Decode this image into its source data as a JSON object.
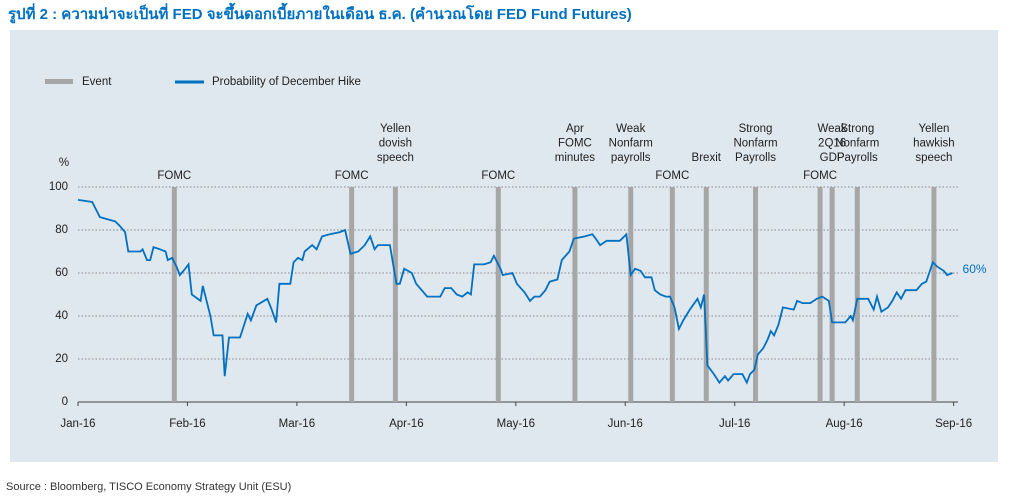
{
  "chart_data": {
    "type": "line",
    "title": "รูปที่ 2 : ความน่าจะเป็นที่ FED จะขึ้นดอกเบี้ยภายในเดือน ธ.ค. (คำนวณโดย FED Fund Futures)",
    "source": "Source : Bloomberg, TISCO Economy Strategy Unit (ESU)",
    "ylabel": "%",
    "xlim": [
      0,
      8.04
    ],
    "xticks": [
      {
        "value": 0,
        "label": "Jan-16"
      },
      {
        "value": 1,
        "label": "Feb-16"
      },
      {
        "value": 2,
        "label": "Mar-16"
      },
      {
        "value": 3,
        "label": "Apr-16"
      },
      {
        "value": 4,
        "label": "May-16"
      },
      {
        "value": 5,
        "label": "Jun-16"
      },
      {
        "value": 6,
        "label": "Jul-16"
      },
      {
        "value": 7,
        "label": "Aug-16"
      },
      {
        "value": 8,
        "label": "Sep-16"
      }
    ],
    "ylim": [
      0,
      100
    ],
    "yticks": [
      0,
      20,
      40,
      60,
      80,
      100
    ],
    "grid": true,
    "event_name": "Event",
    "event_color": "#a6a6a6",
    "events": [
      {
        "x": 0.88,
        "label": [
          "FOMC"
        ]
      },
      {
        "x": 2.5,
        "label": [
          "FOMC"
        ]
      },
      {
        "x": 2.9,
        "label": [
          "Yellen",
          "dovish",
          "speech"
        ]
      },
      {
        "x": 3.84,
        "label": [
          "FOMC"
        ]
      },
      {
        "x": 4.54,
        "label": [
          "Apr",
          "FOMC",
          "minutes"
        ]
      },
      {
        "x": 5.05,
        "label": [
          "Weak",
          "Nonfarm",
          "payrolls"
        ]
      },
      {
        "x": 5.43,
        "label": [
          "FOMC"
        ]
      },
      {
        "x": 5.74,
        "label": [
          "Brexit"
        ]
      },
      {
        "x": 6.19,
        "label": [
          "Strong",
          "Nonfarm",
          "Payrolls"
        ]
      },
      {
        "x": 6.78,
        "label": [
          "FOMC"
        ]
      },
      {
        "x": 6.89,
        "label": [
          "Weak",
          "2Q16",
          "GDP"
        ]
      },
      {
        "x": 7.12,
        "label": [
          "Strong",
          "Nonfarm",
          "Payrolls"
        ]
      },
      {
        "x": 7.82,
        "label": [
          "Yellen",
          "hawkish",
          "speech"
        ]
      }
    ],
    "x": [
      0,
      0.13,
      0.2,
      0.34,
      0.38,
      0.43,
      0.46,
      0.57,
      0.59,
      0.63,
      0.66,
      0.69,
      0.75,
      0.8,
      0.82,
      0.86,
      0.9,
      0.93,
      0.98,
      1.01,
      1.04,
      1.12,
      1.14,
      1.21,
      1.24,
      1.32,
      1.34,
      1.38,
      1.48,
      1.55,
      1.58,
      1.63,
      1.73,
      1.77,
      1.81,
      1.84,
      1.94,
      1.97,
      2.01,
      2.05,
      2.07,
      2.14,
      2.18,
      2.23,
      2.3,
      2.39,
      2.44,
      2.49,
      2.56,
      2.62,
      2.67,
      2.71,
      2.74,
      2.85,
      2.91,
      2.94,
      2.98,
      3.05,
      3.09,
      3.14,
      3.19,
      3.31,
      3.35,
      3.41,
      3.46,
      3.51,
      3.56,
      3.59,
      3.62,
      3.71,
      3.77,
      3.8,
      3.86,
      3.88,
      3.97,
      4.01,
      4.08,
      4.13,
      4.17,
      4.22,
      4.27,
      4.31,
      4.38,
      4.42,
      4.49,
      4.53,
      4.63,
      4.7,
      4.73,
      4.77,
      4.83,
      4.95,
      5.01,
      5.05,
      5.09,
      5.14,
      5.18,
      5.24,
      5.27,
      5.32,
      5.37,
      5.41,
      5.45,
      5.49,
      5.53,
      5.59,
      5.66,
      5.69,
      5.72,
      5.75,
      5.81,
      5.86,
      5.91,
      5.94,
      5.99,
      6.07,
      6.11,
      6.14,
      6.18,
      6.21,
      6.26,
      6.3,
      6.33,
      6.36,
      6.4,
      6.44,
      6.54,
      6.57,
      6.62,
      6.69,
      6.75,
      6.8,
      6.86,
      6.89,
      7.01,
      7.06,
      7.08,
      7.12,
      7.22,
      7.27,
      7.3,
      7.34,
      7.4,
      7.44,
      7.48,
      7.52,
      7.56,
      7.66,
      7.71,
      7.75,
      7.81,
      7.85,
      7.91,
      7.94,
      7.99
    ],
    "series": [
      {
        "name": "Probability of December Hike",
        "color": "#0070c0",
        "values": [
          94,
          93,
          86,
          84,
          82,
          79,
          70,
          70,
          71,
          66,
          66,
          72,
          71,
          70,
          66,
          67,
          63,
          59,
          62,
          64,
          50,
          47,
          54,
          40,
          31,
          31,
          12,
          30,
          30,
          41,
          38,
          45,
          48,
          43,
          37,
          55,
          55,
          65,
          67,
          66,
          70,
          73,
          71,
          77,
          78,
          79,
          80,
          69,
          70,
          73,
          77,
          71,
          73,
          73,
          55,
          55,
          62,
          60,
          55,
          52,
          49,
          49,
          53,
          53,
          50,
          49,
          51,
          50,
          64,
          64,
          65,
          68,
          62,
          59,
          60,
          55,
          51,
          47,
          49,
          49,
          52,
          56,
          57,
          66,
          70,
          76,
          77,
          78,
          76,
          73,
          75,
          75,
          78,
          59,
          62,
          61,
          58,
          58,
          52,
          50,
          49,
          49,
          44,
          34,
          38,
          43,
          48,
          44,
          50,
          17,
          13,
          9,
          12,
          10,
          13,
          13,
          9,
          13,
          15,
          22,
          25,
          29,
          33,
          31,
          36,
          44,
          43,
          47,
          46,
          46,
          48,
          49,
          47,
          37,
          37,
          40,
          38,
          48,
          48,
          43,
          49,
          42,
          44,
          47,
          51,
          48,
          52,
          52,
          55,
          56,
          65,
          63,
          61,
          59,
          60
        ],
        "value_labels": [
          null,
          null,
          null,
          null,
          null,
          null,
          null,
          null,
          null,
          null,
          null,
          null,
          null,
          null,
          null,
          null,
          null,
          null,
          null,
          null,
          null,
          null,
          null,
          null,
          null,
          null,
          null,
          null,
          null,
          null,
          null,
          null,
          null,
          null,
          null,
          null,
          null,
          null,
          null,
          null,
          null,
          null,
          null,
          null,
          null,
          null,
          null,
          null,
          null,
          null,
          null,
          null,
          null,
          null,
          null,
          null,
          null,
          null,
          null,
          null,
          null,
          null,
          null,
          null,
          null,
          null,
          null,
          null,
          null,
          null,
          null,
          null,
          null,
          null,
          null,
          null,
          null,
          null,
          null,
          null,
          null,
          null,
          null,
          null,
          null,
          null,
          null,
          null,
          null,
          null,
          null,
          null,
          null,
          null,
          null,
          null,
          null,
          null,
          null,
          null,
          null,
          null,
          null,
          null,
          null,
          null,
          null,
          null,
          null,
          null,
          null,
          null,
          null,
          null,
          null,
          null,
          null,
          null,
          null,
          null,
          null,
          null,
          null,
          null,
          null,
          null,
          null,
          null,
          null,
          null,
          null,
          null,
          null,
          null,
          null,
          null,
          null,
          null,
          null,
          null,
          null,
          null,
          null,
          null,
          null,
          null,
          null,
          null,
          null,
          null,
          null,
          null,
          null,
          null,
          "60%"
        ]
      }
    ]
  }
}
